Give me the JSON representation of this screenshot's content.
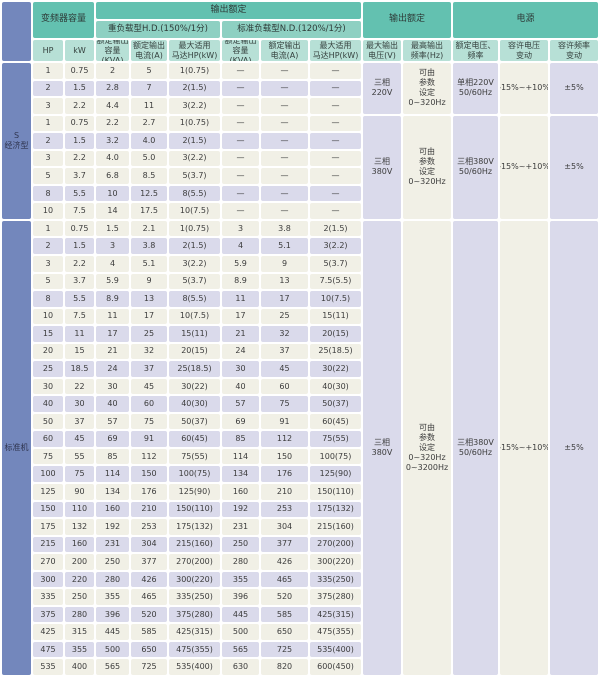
{
  "palette": {
    "header_teal": "#63c1b0",
    "subheader_teal": "#8ed0c2",
    "column_header_teal": "#b7e0d6",
    "category_blue": "#7387bc",
    "row_cream": "#f1f0e6",
    "row_lavender": "#dadaeb"
  },
  "header": {
    "capacity": "变频器容量",
    "output_rating": "输出额定",
    "hd_group": "重负载型H.D.(150%/1分)",
    "nd_group": "标准负载型N.D.(120%/1分)",
    "hp": "HP",
    "kw": "kW",
    "kva": "额定输出\n容量(KVA)",
    "amp": "额定输出\n电流(A)",
    "motor": "最大适用\n马达HP(kW)",
    "output_rating2": "输出额定",
    "max_voltage": "最大输出\n电压(V)",
    "max_freq": "最高输出\n频率(Hz)",
    "power": "电源",
    "rated_voltage_freq": "额定电压、\n频率",
    "voltage_tolerance": "容许电压\n变动",
    "freq_tolerance": "容许频率\n变动"
  },
  "sections": [
    {
      "label": "S\n经济型",
      "groups": [
        {
          "output_voltage": "三相\n220V",
          "output_freq": "可由\n参数\n设定\n0~320Hz",
          "supply": "单相220V\n50/60Hz",
          "voltage_var": "-15%~+10%",
          "freq_var": "±5%",
          "rows": [
            {
              "hp": "1",
              "kw": "0.75",
              "hd": [
                "2",
                "5",
                "1(0.75)"
              ],
              "nd": [
                "—",
                "—",
                "—"
              ],
              "shade": false
            },
            {
              "hp": "2",
              "kw": "1.5",
              "hd": [
                "2.8",
                "7",
                "2(1.5)"
              ],
              "nd": [
                "—",
                "—",
                "—"
              ],
              "shade": true
            },
            {
              "hp": "3",
              "kw": "2.2",
              "hd": [
                "4.4",
                "11",
                "3(2.2)"
              ],
              "nd": [
                "—",
                "—",
                "—"
              ],
              "shade": false
            }
          ]
        },
        {
          "output_voltage": "三相\n380V",
          "output_freq": "可由\n参数\n设定\n0~320Hz",
          "supply": "三相380V\n50/60Hz",
          "voltage_var": "-15%~+10%",
          "freq_var": "±5%",
          "rows": [
            {
              "hp": "1",
              "kw": "0.75",
              "hd": [
                "2.2",
                "2.7",
                "1(0.75)"
              ],
              "nd": [
                "—",
                "—",
                "—"
              ],
              "shade": false
            },
            {
              "hp": "2",
              "kw": "1.5",
              "hd": [
                "3.2",
                "4.0",
                "2(1.5)"
              ],
              "nd": [
                "—",
                "—",
                "—"
              ],
              "shade": true
            },
            {
              "hp": "3",
              "kw": "2.2",
              "hd": [
                "4.0",
                "5.0",
                "3(2.2)"
              ],
              "nd": [
                "—",
                "—",
                "—"
              ],
              "shade": false
            },
            {
              "hp": "5",
              "kw": "3.7",
              "hd": [
                "6.8",
                "8.5",
                "5(3.7)"
              ],
              "nd": [
                "—",
                "—",
                "—"
              ],
              "shade": false
            },
            {
              "hp": "8",
              "kw": "5.5",
              "hd": [
                "10",
                "12.5",
                "8(5.5)"
              ],
              "nd": [
                "—",
                "—",
                "—"
              ],
              "shade": true
            },
            {
              "hp": "10",
              "kw": "7.5",
              "hd": [
                "14",
                "17.5",
                "10(7.5)"
              ],
              "nd": [
                "—",
                "—",
                "—"
              ],
              "shade": false
            }
          ]
        }
      ]
    },
    {
      "label": "标准机",
      "groups": [
        {
          "output_voltage": "三相\n380V",
          "output_freq": "可由\n参数\n设定\n0~320Hz\n0~3200Hz",
          "supply": "三相380V\n50/60Hz",
          "voltage_var": "-15%~+10%",
          "freq_var": "±5%",
          "rows": [
            {
              "hp": "1",
              "kw": "0.75",
              "hd": [
                "1.5",
                "2.1",
                "1(0.75)"
              ],
              "nd": [
                "3",
                "3.8",
                "2(1.5)"
              ],
              "shade": false
            },
            {
              "hp": "2",
              "kw": "1.5",
              "hd": [
                "3",
                "3.8",
                "2(1.5)"
              ],
              "nd": [
                "4",
                "5.1",
                "3(2.2)"
              ],
              "shade": true
            },
            {
              "hp": "3",
              "kw": "2.2",
              "hd": [
                "4",
                "5.1",
                "3(2.2)"
              ],
              "nd": [
                "5.9",
                "9",
                "5(3.7)"
              ],
              "shade": false
            },
            {
              "hp": "5",
              "kw": "3.7",
              "hd": [
                "5.9",
                "9",
                "5(3.7)"
              ],
              "nd": [
                "8.9",
                "13",
                "7.5(5.5)"
              ],
              "shade": false
            },
            {
              "hp": "8",
              "kw": "5.5",
              "hd": [
                "8.9",
                "13",
                "8(5.5)"
              ],
              "nd": [
                "11",
                "17",
                "10(7.5)"
              ],
              "shade": true
            },
            {
              "hp": "10",
              "kw": "7.5",
              "hd": [
                "11",
                "17",
                "10(7.5)"
              ],
              "nd": [
                "17",
                "25",
                "15(11)"
              ],
              "shade": false
            },
            {
              "hp": "15",
              "kw": "11",
              "hd": [
                "17",
                "25",
                "15(11)"
              ],
              "nd": [
                "21",
                "32",
                "20(15)"
              ],
              "shade": true
            },
            {
              "hp": "20",
              "kw": "15",
              "hd": [
                "21",
                "32",
                "20(15)"
              ],
              "nd": [
                "24",
                "37",
                "25(18.5)"
              ],
              "shade": false
            },
            {
              "hp": "25",
              "kw": "18.5",
              "hd": [
                "24",
                "37",
                "25(18.5)"
              ],
              "nd": [
                "30",
                "45",
                "30(22)"
              ],
              "shade": true
            },
            {
              "hp": "30",
              "kw": "22",
              "hd": [
                "30",
                "45",
                "30(22)"
              ],
              "nd": [
                "40",
                "60",
                "40(30)"
              ],
              "shade": false
            },
            {
              "hp": "40",
              "kw": "30",
              "hd": [
                "40",
                "60",
                "40(30)"
              ],
              "nd": [
                "57",
                "75",
                "50(37)"
              ],
              "shade": true
            },
            {
              "hp": "50",
              "kw": "37",
              "hd": [
                "57",
                "75",
                "50(37)"
              ],
              "nd": [
                "69",
                "91",
                "60(45)"
              ],
              "shade": false
            },
            {
              "hp": "60",
              "kw": "45",
              "hd": [
                "69",
                "91",
                "60(45)"
              ],
              "nd": [
                "85",
                "112",
                "75(55)"
              ],
              "shade": true
            },
            {
              "hp": "75",
              "kw": "55",
              "hd": [
                "85",
                "112",
                "75(55)"
              ],
              "nd": [
                "114",
                "150",
                "100(75)"
              ],
              "shade": false
            },
            {
              "hp": "100",
              "kw": "75",
              "hd": [
                "114",
                "150",
                "100(75)"
              ],
              "nd": [
                "134",
                "176",
                "125(90)"
              ],
              "shade": true
            },
            {
              "hp": "125",
              "kw": "90",
              "hd": [
                "134",
                "176",
                "125(90)"
              ],
              "nd": [
                "160",
                "210",
                "150(110)"
              ],
              "shade": false
            },
            {
              "hp": "150",
              "kw": "110",
              "hd": [
                "160",
                "210",
                "150(110)"
              ],
              "nd": [
                "192",
                "253",
                "175(132)"
              ],
              "shade": true
            },
            {
              "hp": "175",
              "kw": "132",
              "hd": [
                "192",
                "253",
                "175(132)"
              ],
              "nd": [
                "231",
                "304",
                "215(160)"
              ],
              "shade": false
            },
            {
              "hp": "215",
              "kw": "160",
              "hd": [
                "231",
                "304",
                "215(160)"
              ],
              "nd": [
                "250",
                "377",
                "270(200)"
              ],
              "shade": true
            },
            {
              "hp": "270",
              "kw": "200",
              "hd": [
                "250",
                "377",
                "270(200)"
              ],
              "nd": [
                "280",
                "426",
                "300(220)"
              ],
              "shade": false
            },
            {
              "hp": "300",
              "kw": "220",
              "hd": [
                "280",
                "426",
                "300(220)"
              ],
              "nd": [
                "355",
                "465",
                "335(250)"
              ],
              "shade": true
            },
            {
              "hp": "335",
              "kw": "250",
              "hd": [
                "355",
                "465",
                "335(250)"
              ],
              "nd": [
                "396",
                "520",
                "375(280)"
              ],
              "shade": false
            },
            {
              "hp": "375",
              "kw": "280",
              "hd": [
                "396",
                "520",
                "375(280)"
              ],
              "nd": [
                "445",
                "585",
                "425(315)"
              ],
              "shade": true
            },
            {
              "hp": "425",
              "kw": "315",
              "hd": [
                "445",
                "585",
                "425(315)"
              ],
              "nd": [
                "500",
                "650",
                "475(355)"
              ],
              "shade": false
            },
            {
              "hp": "475",
              "kw": "355",
              "hd": [
                "500",
                "650",
                "475(355)"
              ],
              "nd": [
                "565",
                "725",
                "535(400)"
              ],
              "shade": true
            },
            {
              "hp": "535",
              "kw": "400",
              "hd": [
                "565",
                "725",
                "535(400)"
              ],
              "nd": [
                "630",
                "820",
                "600(450)"
              ],
              "shade": false
            }
          ]
        }
      ]
    }
  ]
}
